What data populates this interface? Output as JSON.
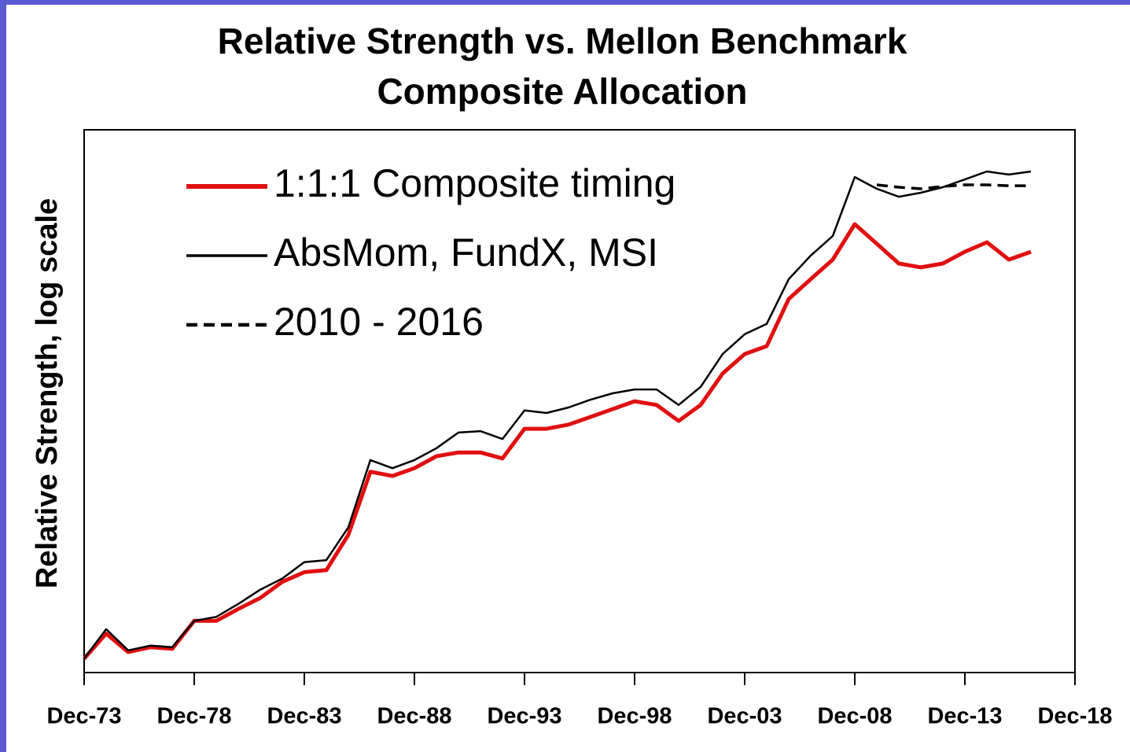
{
  "chart_data": {
    "type": "line",
    "title": [
      "Relative Strength vs. Mellon Benchmark",
      "Composite Allocation"
    ],
    "y_label": "Relative Strength, log scale",
    "y_log": true,
    "ylim": [
      1,
      20
    ],
    "xlim": [
      "1973-12",
      "2018-12"
    ],
    "xticks": [
      {
        "value": "1973-12",
        "label": "Dec-73"
      },
      {
        "value": "1978-12",
        "label": "Dec-78"
      },
      {
        "value": "1983-12",
        "label": "Dec-83"
      },
      {
        "value": "1988-12",
        "label": "Dec-88"
      },
      {
        "value": "1993-12",
        "label": "Dec-93"
      },
      {
        "value": "1998-12",
        "label": "Dec-98"
      },
      {
        "value": "2003-12",
        "label": "Dec-03"
      },
      {
        "value": "2008-12",
        "label": "Dec-08"
      },
      {
        "value": "2013-12",
        "label": "Dec-13"
      },
      {
        "value": "2018-12",
        "label": "Dec-18"
      }
    ],
    "legend": "upper left",
    "x": [
      "1973-12",
      "1974-12",
      "1975-12",
      "1976-12",
      "1977-12",
      "1978-12",
      "1979-12",
      "1980-12",
      "1981-12",
      "1982-12",
      "1983-12",
      "1984-12",
      "1985-12",
      "1986-12",
      "1987-12",
      "1988-12",
      "1989-12",
      "1990-12",
      "1991-12",
      "1992-12",
      "1993-12",
      "1994-12",
      "1995-12",
      "1996-12",
      "1997-12",
      "1998-12",
      "1999-12",
      "2000-12",
      "2001-12",
      "2002-12",
      "2003-12",
      "2004-12",
      "2005-12",
      "2006-12",
      "2007-12",
      "2008-12",
      "2009-12",
      "2010-12",
      "2011-12",
      "2012-12",
      "2013-12",
      "2014-12",
      "2015-12",
      "2016-12"
    ],
    "series": [
      {
        "name": "1:1:1 Composite timing",
        "color": "#e01010",
        "width": 5,
        "dashed": false,
        "values": [
          1.08,
          1.24,
          1.12,
          1.15,
          1.14,
          1.33,
          1.33,
          1.42,
          1.51,
          1.65,
          1.74,
          1.76,
          2.14,
          3.03,
          2.96,
          3.09,
          3.3,
          3.37,
          3.37,
          3.26,
          3.84,
          3.84,
          3.93,
          4.1,
          4.28,
          4.47,
          4.38,
          4.01,
          4.38,
          5.21,
          5.8,
          6.06,
          7.86,
          8.77,
          9.77,
          11.88,
          10.66,
          9.56,
          9.36,
          9.56,
          10.2,
          10.75,
          9.77,
          10.2
        ]
      },
      {
        "name": "AbsMom, FundX, MSI",
        "color": "#000000",
        "width": 2.5,
        "dashed": false,
        "values": [
          1.08,
          1.27,
          1.13,
          1.16,
          1.15,
          1.33,
          1.36,
          1.46,
          1.58,
          1.68,
          1.84,
          1.86,
          2.23,
          3.23,
          3.09,
          3.23,
          3.45,
          3.76,
          3.79,
          3.63,
          4.25,
          4.19,
          4.32,
          4.51,
          4.67,
          4.77,
          4.77,
          4.38,
          4.84,
          5.8,
          6.47,
          6.85,
          8.77,
          9.99,
          11.13,
          15.41,
          14.44,
          13.82,
          14.13,
          14.57,
          15.21,
          15.89,
          15.62,
          15.89
        ]
      },
      {
        "name": "2010 - 2016",
        "color": "#000000",
        "width": 3.5,
        "dashed": true,
        "x": [
          "2009-12",
          "2010-12",
          "2011-12",
          "2012-12",
          "2013-12",
          "2014-12",
          "2015-12",
          "2016-12"
        ],
        "values": [
          14.76,
          14.57,
          14.44,
          14.63,
          14.76,
          14.76,
          14.69,
          14.69
        ]
      }
    ]
  }
}
